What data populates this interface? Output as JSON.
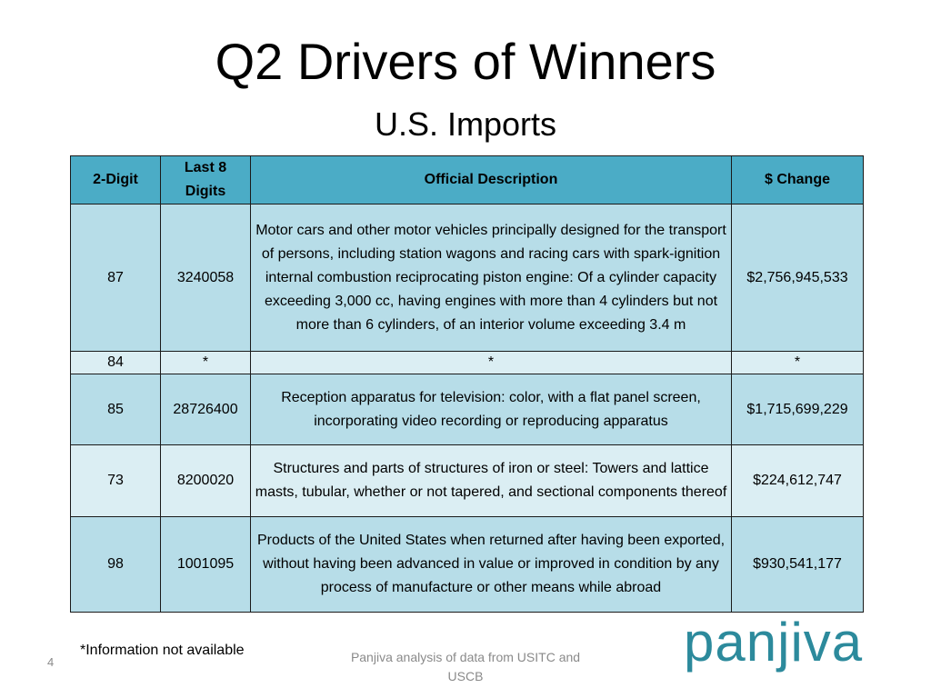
{
  "header": {
    "title": "Q2 Drivers of Winners",
    "subtitle": "U.S. Imports"
  },
  "table": {
    "columns": [
      "2-Digit",
      "Last 8 Digits",
      "Official Description",
      "$ Change"
    ],
    "rows": [
      {
        "two_digit": "87",
        "last_8_digits": "3240058",
        "description": "Motor cars and other motor vehicles principally designed for the transport of persons, including station wagons and racing cars with spark-ignition internal combustion reciprocating piston engine: Of a cylinder capacity exceeding 3,000 cc, having engines with more than 4 cylinders but not more than 6 cylinders, of an interior volume exceeding 3.4 m",
        "change": "$2,756,945,533"
      },
      {
        "two_digit": "84",
        "last_8_digits": "*",
        "description": "*",
        "change": "*"
      },
      {
        "two_digit": "85",
        "last_8_digits": "28726400",
        "description": "Reception apparatus for television: color, with a flat panel screen, incorporating video recording or reproducing apparatus",
        "change": "$1,715,699,229"
      },
      {
        "two_digit": "73",
        "last_8_digits": "8200020",
        "description": "Structures and parts of structures of iron or steel: Towers and lattice masts, tubular, whether or not tapered, and sectional components thereof",
        "change": "$224,612,747"
      },
      {
        "two_digit": "98",
        "last_8_digits": "1001095",
        "description": "Products of the United States when returned after having been exported, without having been advanced in value or improved in condition by any process of manufacture or other means while abroad",
        "change": "$930,541,177"
      }
    ]
  },
  "footer": {
    "note": "*Information not available",
    "page_number": "4",
    "source": "Panjiva analysis of data from USITC and USCB",
    "logo_text": "panjiva"
  },
  "colors": {
    "header_fill": "#4bacc6",
    "row_dark": "#b7dde8",
    "row_light": "#dbeef3",
    "logo": "#2c8a9c"
  }
}
